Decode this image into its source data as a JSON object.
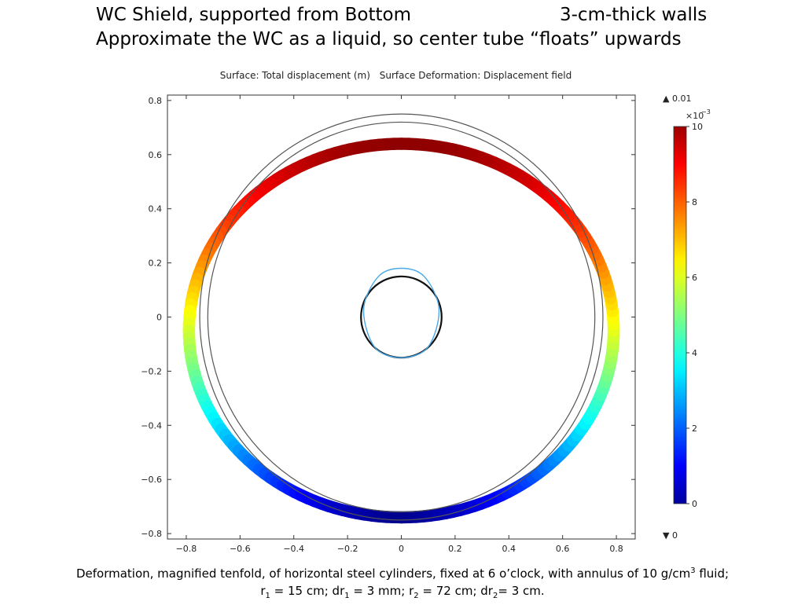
{
  "slide": {
    "title_line1_left": "WC Shield, supported from Bottom",
    "title_line1_right": "3-cm-thick walls",
    "title_line2": "Approximate the WC as a liquid, so center tube “floats” upwards"
  },
  "plot_subtitle": {
    "surface": "Surface: Total displacement (m)",
    "deformation": "Surface Deformation: Displacement field"
  },
  "caption": {
    "part1": "Deformation, magnified tenfold, of horizontal steel cylinders, fixed at 6 o’clock, with annulus of 10 g/cm",
    "sup3": "3",
    "part2": " fluid;",
    "r1_label": "r",
    "r1_sub": "1",
    "r1_val": " = 15 cm; dr",
    "dr1_sub": "1",
    "dr1_val": " = 3 mm; r",
    "r2_sub": "2",
    "r2_val": " = 72 cm; dr",
    "dr2_sub": "2",
    "dr2_val": "= 3 cm."
  },
  "colors": {
    "undeformed_outer": "#555555",
    "undeformed_inner": "#111111",
    "deformed_inner": "#4aa8e8"
  },
  "chart_data": {
    "type": "contour",
    "xlim": [
      -0.87,
      0.87
    ],
    "ylim": [
      -0.82,
      0.82
    ],
    "x_ticks": [
      -0.8,
      -0.6,
      -0.4,
      -0.2,
      0,
      0.2,
      0.4,
      0.6,
      0.8
    ],
    "y_ticks": [
      -0.8,
      -0.6,
      -0.4,
      -0.2,
      0,
      0.2,
      0.4,
      0.6,
      0.8
    ],
    "x_tick_labels": [
      "−0.8",
      "−0.6",
      "−0.4",
      "−0.2",
      "0",
      "0.2",
      "0.4",
      "0.6",
      "0.8"
    ],
    "y_tick_labels": [
      "−0.8",
      "−0.6",
      "−0.4",
      "−0.2",
      "0",
      "0.2",
      "0.4",
      "0.6",
      "0.8"
    ],
    "undeformed_outer_circles": [
      {
        "cx": 0,
        "cy": 0,
        "r": 0.72
      },
      {
        "cx": 0,
        "cy": 0,
        "r": 0.75
      }
    ],
    "undeformed_inner_circle": {
      "cx": 0,
      "cy": 0,
      "r": 0.15
    },
    "deformed_inner_curve": {
      "points": [
        [
          0,
          0.18
        ],
        [
          0.085,
          0.15
        ],
        [
          0.14,
          0.03
        ],
        [
          0.1,
          -0.11
        ],
        [
          0,
          -0.15
        ],
        [
          -0.1,
          -0.11
        ],
        [
          -0.14,
          0.03
        ],
        [
          -0.085,
          0.15
        ]
      ]
    },
    "deformed_outer_ring": {
      "center_y": -0.05,
      "half_width_x": 0.79,
      "half_height_top": 0.69,
      "half_height_bottom": 0.69,
      "bottom_fixed_y": -0.75,
      "thickness": 0.03,
      "displacement_top": 0.01,
      "displacement_bottom": 0
    },
    "colorbar": {
      "min": 0,
      "max": 10,
      "ticks": [
        0,
        2,
        4,
        6,
        8,
        10
      ],
      "tick_labels": [
        "0",
        "2",
        "4",
        "6",
        "8",
        "10"
      ],
      "multiplier": "×10",
      "multiplier_exp": "−3",
      "max_marker": "▲ 0.01",
      "min_marker": "▼ 0"
    }
  }
}
